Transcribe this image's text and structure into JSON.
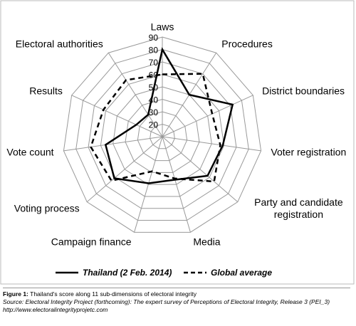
{
  "chart_data": {
    "type": "radar",
    "categories": [
      "Laws",
      "Procedures",
      "District boundaries",
      "Voter registration",
      "Party and candidate registration",
      "Media",
      "Campaign finance",
      "Voting process",
      "Vote count",
      "Results",
      "Electoral authorities"
    ],
    "series": [
      {
        "name": "Thailand (2 Feb. 2014)",
        "color": "#000000",
        "dashed": false,
        "values": [
          80,
          50,
          72,
          59,
          58,
          46,
          49,
          61,
          56,
          33,
          31
        ]
      },
      {
        "name": "Global average",
        "color": "#000000",
        "dashed": true,
        "values": [
          60,
          70,
          54,
          57,
          65,
          45,
          39,
          64,
          68,
          62,
          64
        ]
      }
    ],
    "rlim": [
      10,
      90
    ],
    "rticks": [
      20,
      30,
      40,
      50,
      60,
      70,
      80,
      90
    ],
    "grid": true
  },
  "caption": {
    "label": "Figure 1:",
    "text": "Thailand's score along 11 sub-dimensions of electoral integrity",
    "source": "Source: Electoral Integrity Project (forthcoming): The expert survey of Perceptions of Electoral Integrity, Release 3 (PEI_3)",
    "url": "http://www.electoralintegrityprojetc.com"
  }
}
